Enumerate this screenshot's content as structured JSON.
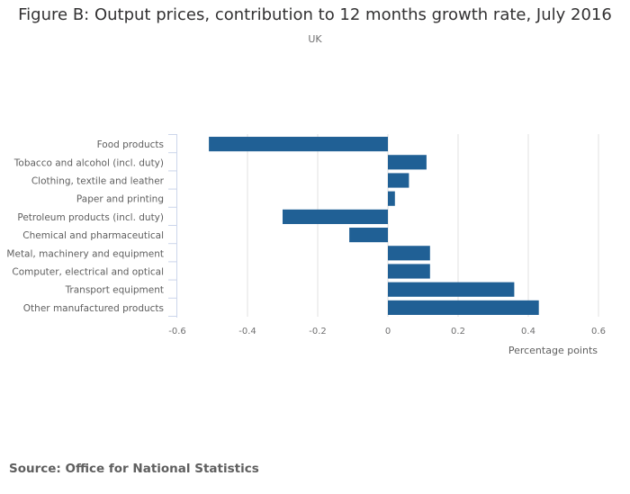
{
  "chart_data": {
    "type": "bar",
    "orientation": "horizontal",
    "title": "Figure B: Output prices, contribution to 12 months growth rate, July 2016",
    "subtitle": "UK",
    "xlabel": "Percentage points",
    "ylabel": "",
    "xlim": [
      -0.6,
      0.6
    ],
    "xticks": [
      -0.6,
      -0.4,
      -0.2,
      0,
      0.2,
      0.4,
      0.6
    ],
    "xtick_labels": [
      "-0.6",
      "-0.4",
      "-0.2",
      "0",
      "0.2",
      "0.4",
      "0.6"
    ],
    "grid": true,
    "legend": "none",
    "bar_color": "#206095",
    "categories": [
      "Food products",
      "Tobacco and alcohol (incl. duty)",
      "Clothing, textile and leather",
      "Paper and printing",
      "Petroleum products (incl. duty)",
      "Chemical and pharmaceutical",
      "Metal, machinery and equipment",
      "Computer, electrical and optical",
      "Transport equipment",
      "Other manufactured products"
    ],
    "values": [
      -0.51,
      0.11,
      0.06,
      0.02,
      -0.3,
      -0.11,
      0.12,
      0.12,
      0.36,
      0.43
    ]
  },
  "source": "Source: Office for National Statistics"
}
